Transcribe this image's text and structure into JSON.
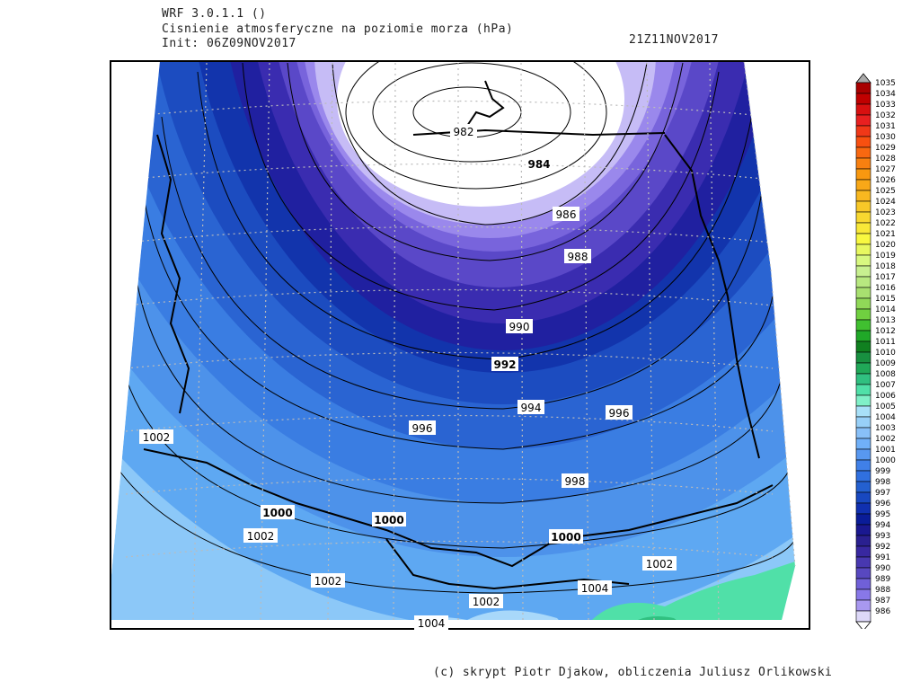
{
  "header": {
    "model": "WRF 3.0.1.1 ()",
    "title": "Cisnienie atmosferyczne na poziomie morza (hPa)",
    "init": "Init: 06Z09NOV2017",
    "valid": "21Z11NOV2017"
  },
  "footer": {
    "credit": "(c) skrypt Piotr Djakow, obliczenia Juliusz Orlikowski"
  },
  "isobar_labels": [
    {
      "text": "982",
      "bold": false
    },
    {
      "text": "984",
      "bold": true
    },
    {
      "text": "986",
      "bold": false
    },
    {
      "text": "988",
      "bold": false
    },
    {
      "text": "990",
      "bold": false
    },
    {
      "text": "992",
      "bold": true
    },
    {
      "text": "994",
      "bold": false
    },
    {
      "text": "996",
      "bold": false
    },
    {
      "text": "996",
      "bold": false
    },
    {
      "text": "998",
      "bold": false
    },
    {
      "text": "1000",
      "bold": true
    },
    {
      "text": "1000",
      "bold": true
    },
    {
      "text": "1000",
      "bold": true
    },
    {
      "text": "1002",
      "bold": false
    },
    {
      "text": "1002",
      "bold": false
    },
    {
      "text": "1002",
      "bold": false
    },
    {
      "text": "1002",
      "bold": false
    },
    {
      "text": "1002",
      "bold": false
    },
    {
      "text": "1004",
      "bold": false
    },
    {
      "text": "1004",
      "bold": false
    }
  ],
  "legend": {
    "levels": [
      "1035",
      "1034",
      "1033",
      "1032",
      "1031",
      "1030",
      "1029",
      "1028",
      "1027",
      "1026",
      "1025",
      "1024",
      "1023",
      "1022",
      "1021",
      "1020",
      "1019",
      "1018",
      "1017",
      "1016",
      "1015",
      "1014",
      "1013",
      "1012",
      "1011",
      "1010",
      "1009",
      "1008",
      "1007",
      "1006",
      "1005",
      "1004",
      "1003",
      "1002",
      "1001",
      "1000",
      "999",
      "998",
      "997",
      "996",
      "995",
      "994",
      "993",
      "992",
      "991",
      "990",
      "989",
      "988",
      "987",
      "986"
    ],
    "colors": [
      "#a80000",
      "#c00000",
      "#d81010",
      "#e82020",
      "#f03818",
      "#f85010",
      "#f86810",
      "#f88010",
      "#f89810",
      "#f8a818",
      "#f8b820",
      "#f8c828",
      "#f8d830",
      "#f8e838",
      "#f8f840",
      "#e8f860",
      "#d8f880",
      "#c8f090",
      "#b8e880",
      "#a8e070",
      "#90d858",
      "#70d040",
      "#40c030",
      "#20a828",
      "#108020",
      "#189040",
      "#20a858",
      "#30c080",
      "#50e0a8",
      "#80f0c8",
      "#a8e0f8",
      "#98d0f8",
      "#88c0f8",
      "#70b0f8",
      "#5898f0",
      "#4080e8",
      "#3070e0",
      "#2460d0",
      "#1848c0",
      "#1030b0",
      "#0a1c98",
      "#1a1890",
      "#2a2090",
      "#3828a0",
      "#4838b0",
      "#5848c0",
      "#7060d8",
      "#8878e8",
      "#a898f0",
      "#ddd8f8"
    ]
  }
}
